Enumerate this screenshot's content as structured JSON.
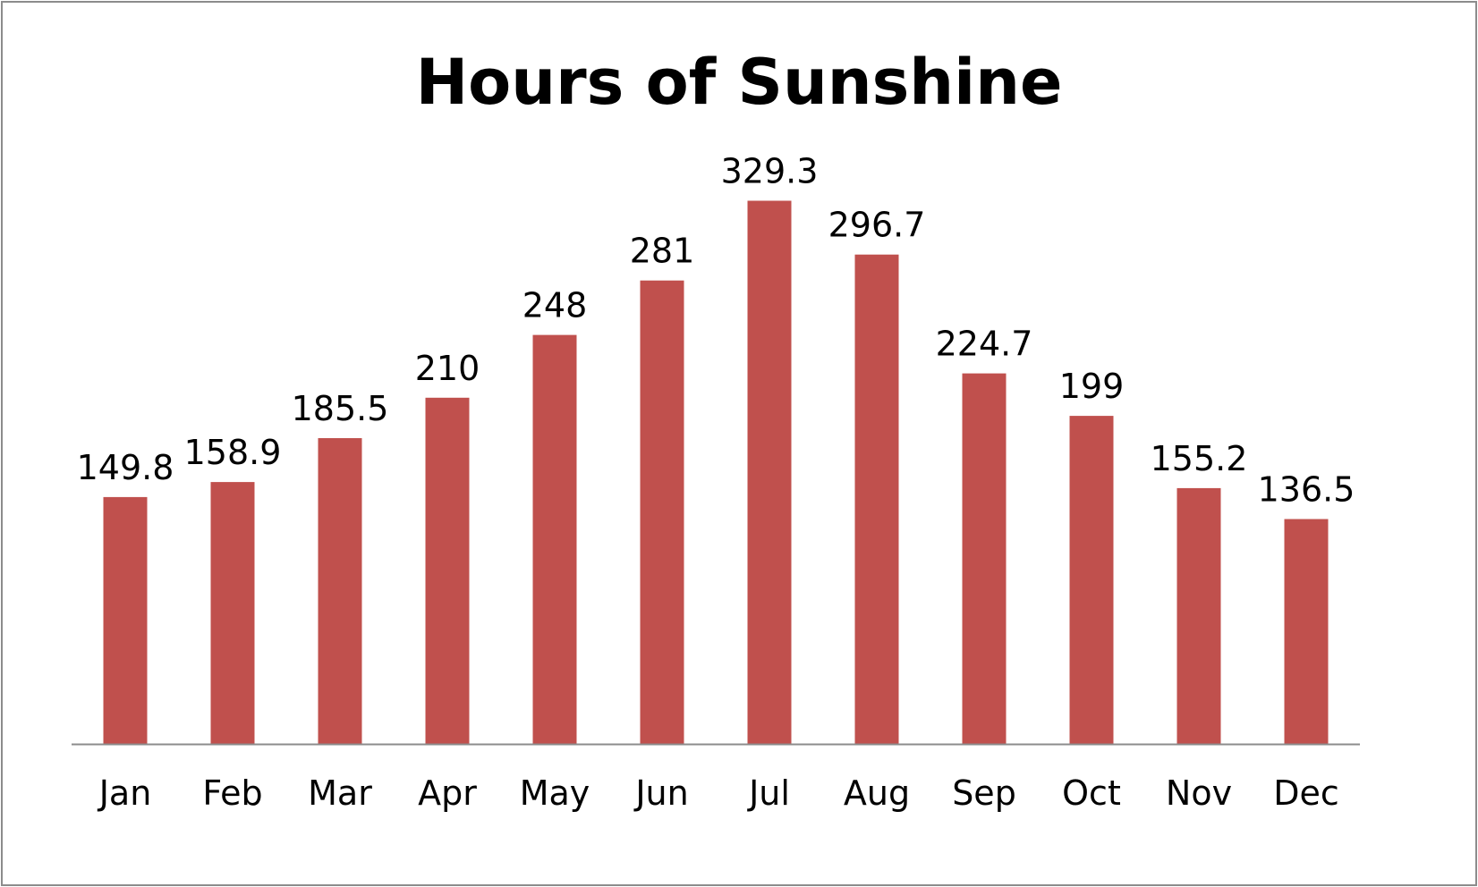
{
  "chart_data": {
    "type": "bar",
    "title": "Hours of Sunshine",
    "xlabel": "",
    "ylabel": "",
    "categories": [
      "Jan",
      "Feb",
      "Mar",
      "Apr",
      "May",
      "Jun",
      "Jul",
      "Aug",
      "Sep",
      "Oct",
      "Nov",
      "Dec"
    ],
    "values": [
      149.8,
      158.9,
      185.5,
      210,
      248,
      281,
      329.3,
      296.7,
      224.7,
      199,
      155.2,
      136.5
    ],
    "data_labels": [
      "149.8",
      "158.9",
      "185.5",
      "210",
      "248",
      "281",
      "329.3",
      "296.7",
      "224.7",
      "199",
      "155.2",
      "136.5"
    ],
    "ylim": [
      0,
      350
    ],
    "grid": false,
    "legend": "none",
    "bar_color": "#c0504d",
    "axis_color": "#8c8c8c"
  }
}
